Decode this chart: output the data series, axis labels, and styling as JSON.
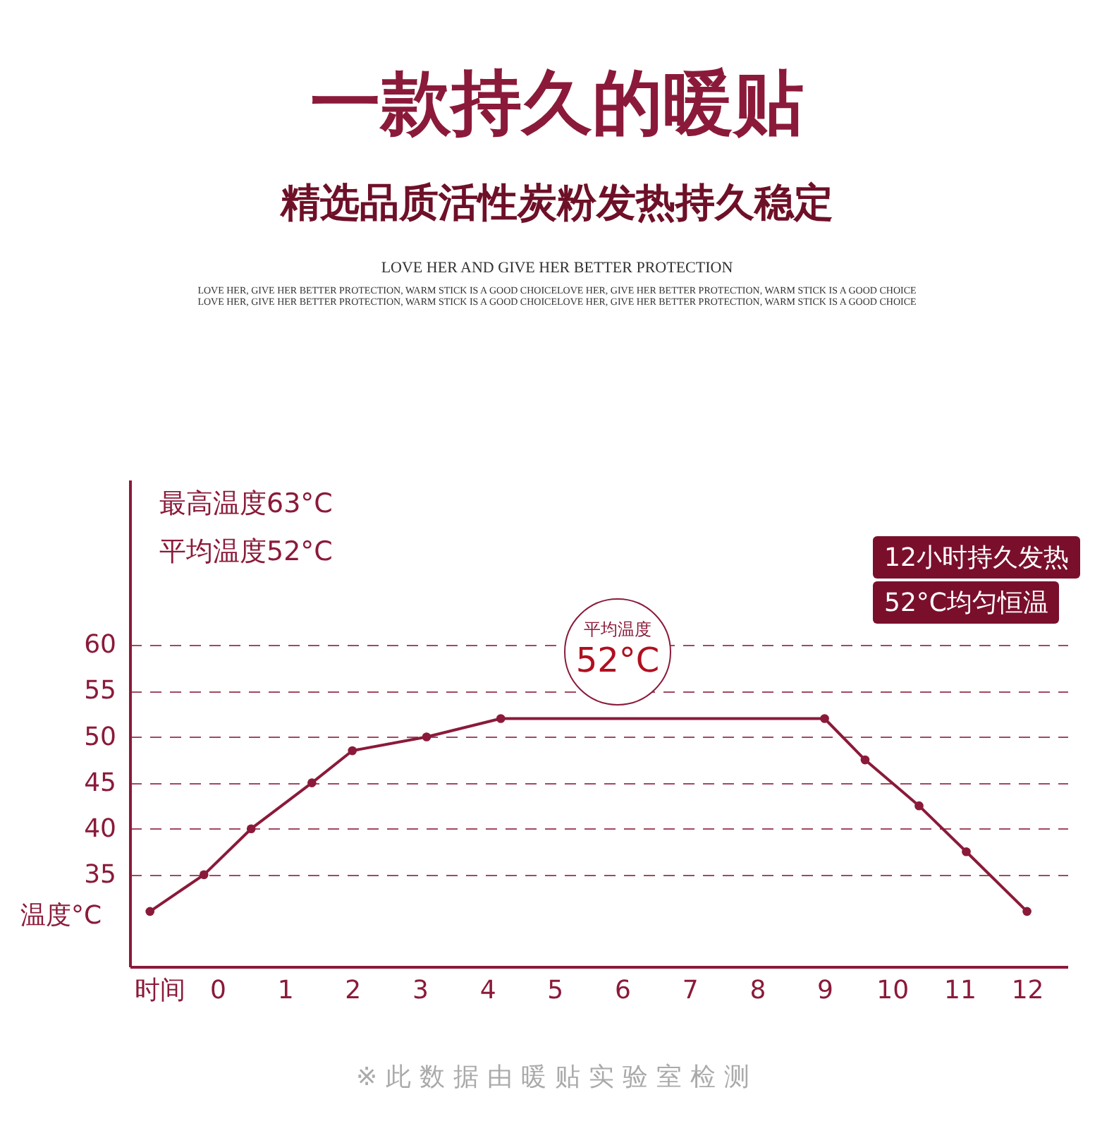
{
  "chart_data": {
    "type": "line",
    "title": "一款持久的暖贴",
    "subtitle": "精选品质活性炭粉发热持久稳定",
    "xlabel": "时间",
    "ylabel": "温度°C",
    "annotations": [
      "最高温度63°C",
      "平均温度52°C",
      "12小时持久发热",
      "52°C均匀恒温",
      "平均温度",
      "52°C",
      "LOVE HER AND GIVE HER BETTER PROTECTION",
      "LOVE HER, GIVE HER BETTER PROTECTION, WARM STICK IS A GOOD CHOICELOVE HER, GIVE HER BETTER PROTECTION, WARM STICK IS A GOOD CHOICE",
      "LOVE HER, GIVE HER BETTER PROTECTION, WARM STICK IS A GOOD CHOICELOVE HER, GIVE HER BETTER PROTECTION, WARM STICK IS A GOOD CHOICE",
      "※此数据由暖贴实验室检测"
    ],
    "x": [
      -1.0,
      -0.2,
      0.5,
      1.4,
      2.0,
      3.1,
      4.2,
      9.0,
      9.6,
      10.4,
      11.1,
      12.0
    ],
    "series": [
      {
        "color": "#8b1a3a",
        "values": [
          31,
          35,
          40,
          45,
          48.5,
          50,
          52,
          52,
          47.5,
          42.5,
          37.5,
          31
        ]
      }
    ],
    "xlim": [
      -1.3,
      12.6
    ],
    "xticks": [
      0,
      1,
      2,
      3,
      4,
      5,
      6,
      7,
      8,
      9,
      10,
      11,
      12
    ],
    "ylim": [
      25,
      78
    ],
    "yticks": [
      35,
      40,
      45,
      50,
      55,
      60
    ],
    "grid": "y",
    "marker": "circle",
    "line_style": "solid"
  }
}
